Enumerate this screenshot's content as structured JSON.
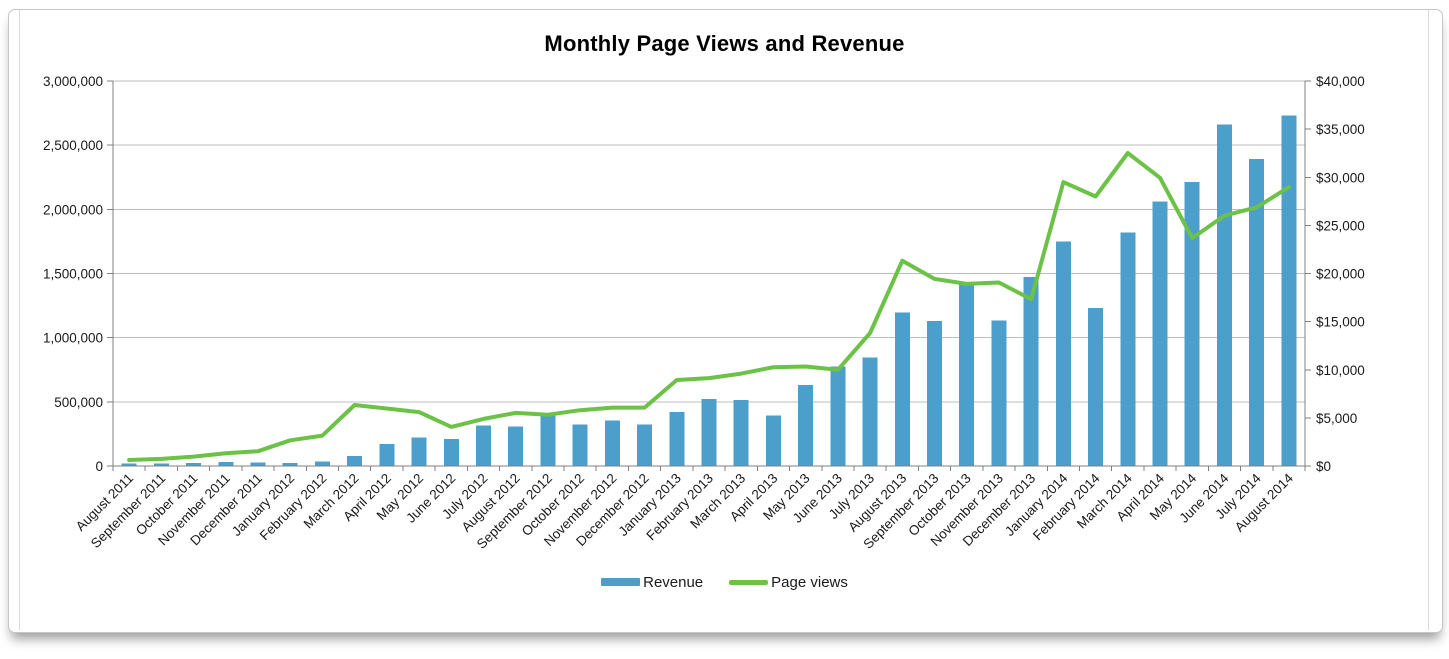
{
  "chart_data": {
    "type": "bar+line",
    "title": "Monthly Page Views and Revenue",
    "categories": [
      "August 2011",
      "September 2011",
      "October 2011",
      "November 2011",
      "December 2011",
      "January 2012",
      "February 2012",
      "March 2012",
      "April 2012",
      "May 2012",
      "June 2012",
      "July 2012",
      "August 2012",
      "September 2012",
      "October 2012",
      "November 2012",
      "December 2012",
      "January 2013",
      "February 2013",
      "March 2013",
      "April 2013",
      "May 2013",
      "June 2013",
      "July 2013",
      "August 2013",
      "September 2013",
      "October 2013",
      "November 2013",
      "December 2013",
      "January 2014",
      "February 2014",
      "March 2014",
      "April 2014",
      "May 2014",
      "June 2014",
      "July 2014",
      "August 2014"
    ],
    "series": [
      {
        "name": "Revenue",
        "type": "bar",
        "axis": "right",
        "color": "#4d9fcb",
        "values": [
          240,
          270,
          300,
          420,
          350,
          300,
          450,
          1040,
          2270,
          2970,
          2790,
          4220,
          4120,
          5340,
          4290,
          4750,
          4300,
          5590,
          6980,
          6880,
          5240,
          8440,
          10350,
          11280,
          15970,
          15040,
          18920,
          15130,
          19650,
          23300,
          16410,
          24270,
          27470,
          29490,
          35500,
          31920,
          36440
        ]
      },
      {
        "name": "Page views",
        "type": "line",
        "axis": "left",
        "color": "#6cc247",
        "values": [
          47000,
          55000,
          73000,
          100000,
          115000,
          200000,
          237000,
          475000,
          448000,
          420000,
          305000,
          367000,
          414000,
          400000,
          435000,
          455000,
          455000,
          670000,
          685000,
          720000,
          770000,
          775000,
          750000,
          1036000,
          1600000,
          1458000,
          1419000,
          1430000,
          1300000,
          2212000,
          2100000,
          2439000,
          2246000,
          1776000,
          1951000,
          2016000,
          2173000
        ]
      }
    ],
    "left_axis": {
      "min": 0,
      "max": 3000000,
      "tick_interval": 500000,
      "ticks": [
        "0",
        "500,000",
        "1,000,000",
        "1,500,000",
        "2,000,000",
        "2,500,000",
        "3,000,000"
      ],
      "measures": "Page views"
    },
    "right_axis": {
      "min": 0,
      "max": 40000,
      "tick_interval": 5000,
      "ticks": [
        "$0",
        "$5,000",
        "$10,000",
        "$15,000",
        "$20,000",
        "$25,000",
        "$30,000",
        "$35,000",
        "$40,000"
      ],
      "measures": "Revenue"
    },
    "legend": {
      "position": "bottom-center",
      "items": [
        "Revenue",
        "Page views"
      ]
    },
    "grid": "horizontal",
    "x_label_rotation_deg": 45
  },
  "colors": {
    "bar": "#4d9fcb",
    "line": "#6cc247",
    "gridline": "#bcbcbc",
    "axis": "#808080",
    "text": "#1a1a1a",
    "card_border": "#c6c6c6"
  }
}
